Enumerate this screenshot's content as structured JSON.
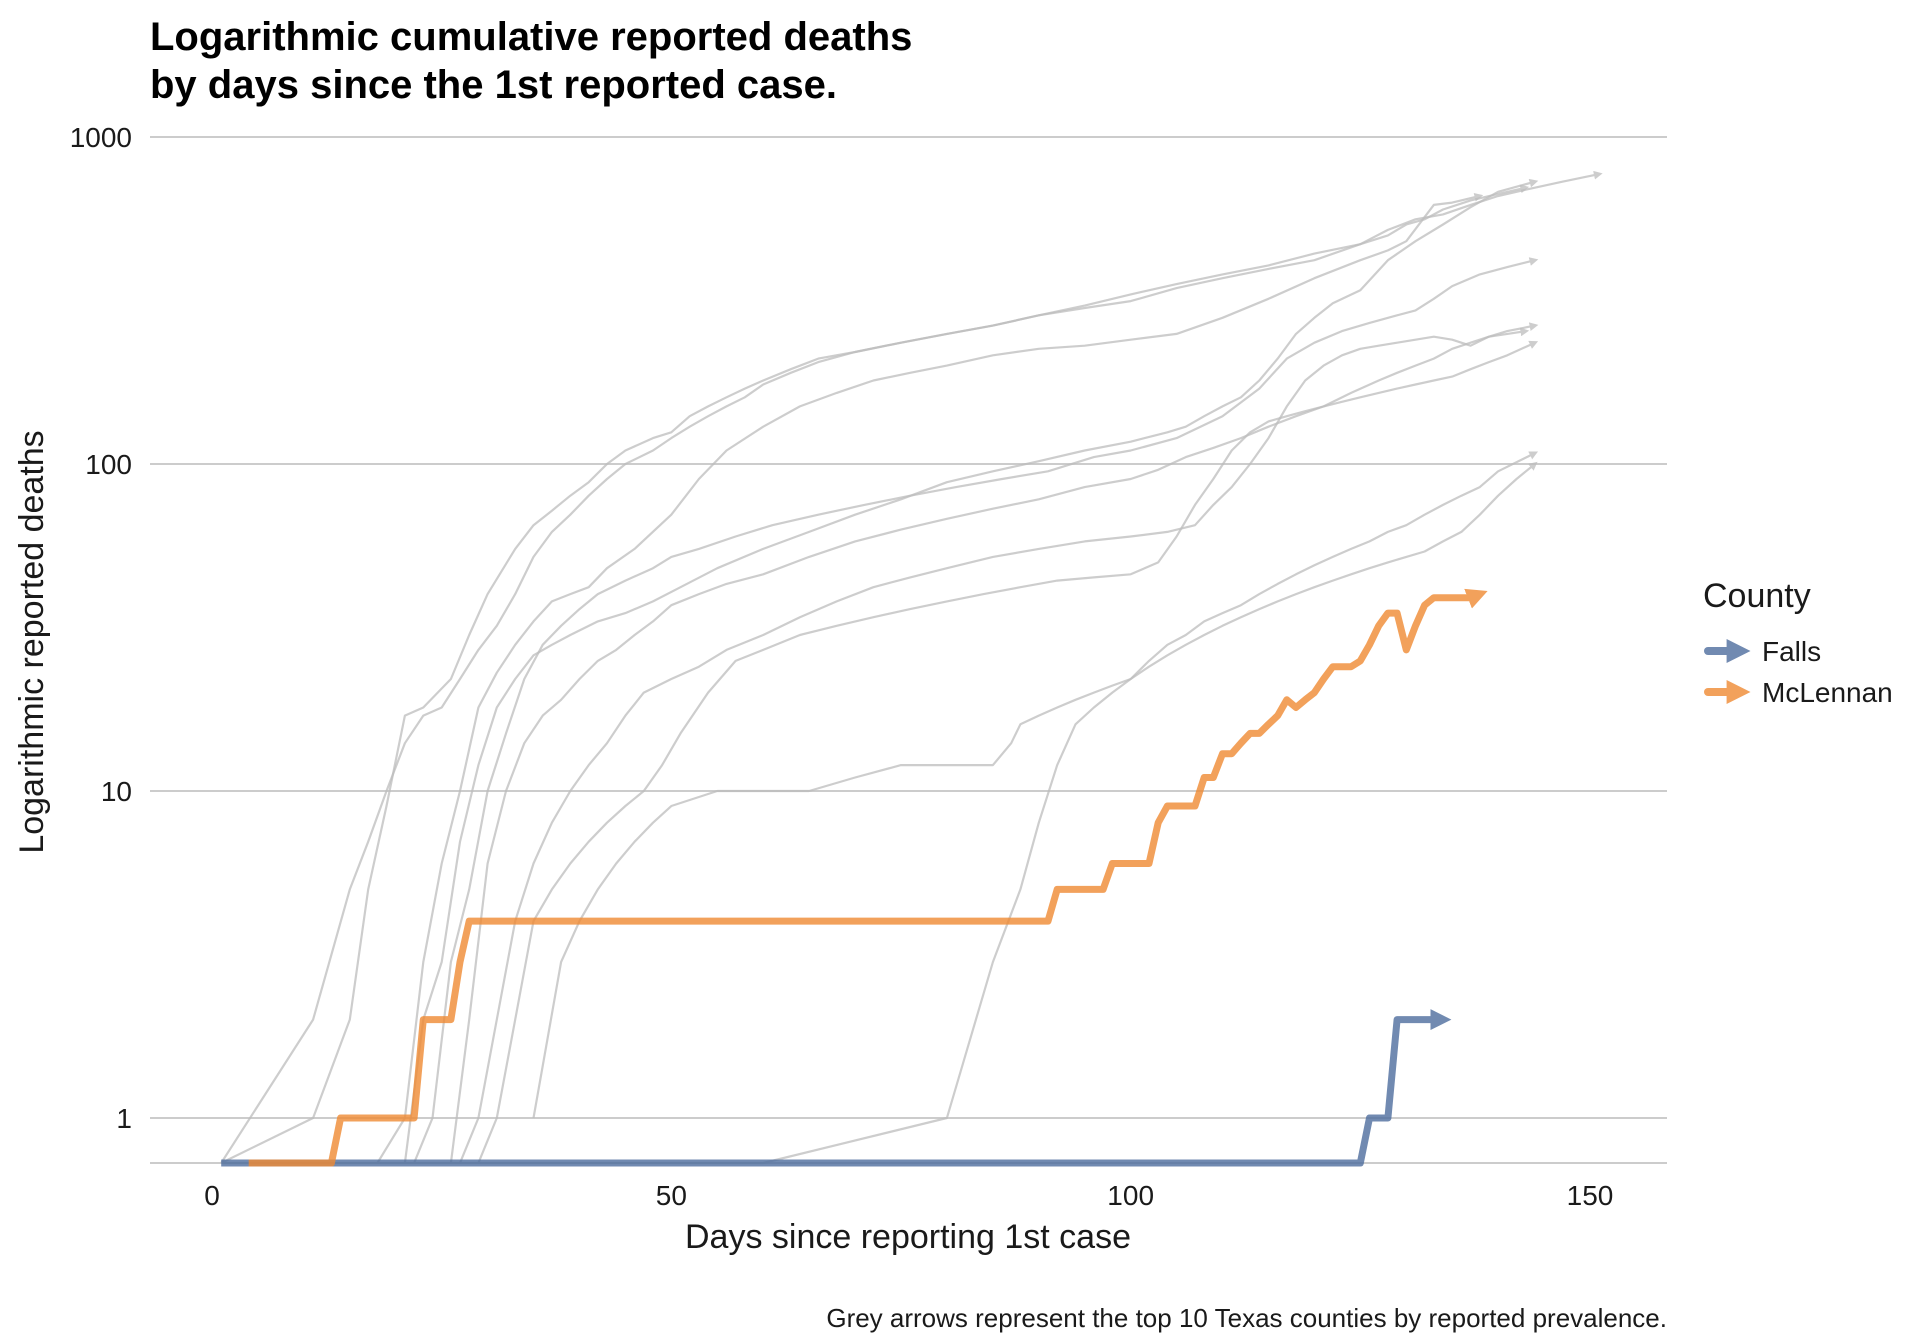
{
  "chart_data": {
    "type": "line",
    "title_lines": [
      "Logarithmic cumulative reported deaths",
      "by days since the 1st reported case."
    ],
    "xlabel": "Days since reporting 1st case",
    "ylabel": "Logarithmic reported deaths",
    "caption": "Grey arrows represent the top 10 Texas counties by reported prevalence.",
    "xlim": [
      -6,
      158
    ],
    "ylim": [
      0.5,
      1000
    ],
    "y_scale": "log10",
    "x_ticks": [
      0,
      50,
      100,
      150
    ],
    "x_tick_labels": [
      "0",
      "50",
      "100",
      "150"
    ],
    "y_ticks": [
      1,
      10,
      100,
      1000
    ],
    "y_tick_labels": [
      "1",
      "10",
      "100",
      "1000"
    ],
    "grid": {
      "horizontal": true,
      "vertical": false,
      "color": "#cccccc"
    },
    "legend": {
      "title": "County",
      "position": "right",
      "entries": [
        {
          "label": "Falls",
          "color": "#4e6e9e"
        },
        {
          "label": "McLennan",
          "color": "#f08a33"
        }
      ]
    },
    "background_series_color": "#bdbdbd",
    "background_series": [
      {
        "x": [
          1,
          11,
          15,
          17,
          19,
          21,
          23,
          26,
          28,
          30,
          33,
          35,
          37,
          39,
          41,
          43,
          45,
          48,
          50,
          52,
          54,
          56,
          58,
          60,
          63,
          66,
          70,
          75,
          80,
          85,
          90,
          95,
          100,
          105,
          110,
          115,
          120,
          125,
          128,
          130,
          132,
          134,
          137,
          140,
          143
        ],
        "y": [
          0.5,
          1,
          2,
          5,
          9,
          17,
          18,
          22,
          30,
          40,
          55,
          65,
          72,
          80,
          88,
          100,
          110,
          120,
          125,
          140,
          150,
          160,
          170,
          180,
          195,
          210,
          220,
          235,
          250,
          265,
          285,
          300,
          315,
          345,
          370,
          395,
          420,
          470,
          500,
          540,
          560,
          600,
          640,
          670,
          700
        ]
      },
      {
        "x": [
          1,
          11,
          15,
          17,
          19,
          21,
          23,
          25,
          27,
          29,
          31,
          33,
          35,
          37,
          39,
          41,
          43,
          45,
          48,
          50,
          52,
          54,
          56,
          58,
          60,
          63,
          66,
          70,
          75,
          80,
          85,
          90,
          95,
          100,
          105,
          110,
          115,
          120,
          125,
          128,
          131,
          134,
          137,
          140,
          143,
          147,
          151
        ],
        "y": [
          0.5,
          2,
          5,
          7,
          10,
          14,
          17,
          18,
          22,
          27,
          32,
          40,
          52,
          62,
          70,
          80,
          90,
          100,
          110,
          120,
          130,
          140,
          150,
          160,
          175,
          190,
          205,
          220,
          235,
          250,
          265,
          285,
          305,
          330,
          355,
          380,
          405,
          440,
          470,
          520,
          560,
          580,
          620,
          660,
          690,
          730,
          770
        ]
      },
      {
        "x": [
          18,
          21,
          23,
          25,
          27,
          29,
          31,
          33,
          35,
          37,
          39,
          41,
          43,
          46,
          50,
          53,
          56,
          60,
          64,
          68,
          72,
          76,
          80,
          85,
          90,
          95,
          100,
          105,
          110,
          115,
          120,
          125,
          128,
          130,
          133,
          135,
          138
        ],
        "y": [
          0.5,
          1,
          3,
          6,
          10,
          18,
          23,
          28,
          33,
          38,
          40,
          42,
          48,
          55,
          70,
          90,
          110,
          130,
          150,
          165,
          180,
          190,
          200,
          215,
          225,
          230,
          240,
          250,
          280,
          320,
          370,
          420,
          450,
          480,
          620,
          630,
          660
        ]
      },
      {
        "x": [
          21,
          23,
          25,
          27,
          29,
          31,
          33,
          35,
          37,
          39,
          42,
          45,
          48,
          51,
          55,
          60,
          65,
          70,
          75,
          80,
          85,
          90,
          95,
          100,
          104,
          106,
          108,
          110,
          112,
          114,
          116,
          118,
          120,
          122,
          125,
          128,
          131,
          134,
          137,
          140,
          144
        ],
        "y": [
          0.5,
          2,
          3,
          7,
          12,
          18,
          22,
          26,
          28,
          30,
          33,
          35,
          38,
          42,
          48,
          55,
          62,
          70,
          78,
          88,
          95,
          102,
          110,
          117,
          125,
          130,
          140,
          150,
          160,
          180,
          210,
          250,
          280,
          310,
          340,
          420,
          480,
          540,
          610,
          680,
          730
        ]
      },
      {
        "x": [
          22,
          24,
          26,
          28,
          30,
          32,
          34,
          36,
          38,
          40,
          42,
          45,
          48,
          50,
          53,
          57,
          61,
          66,
          71,
          76,
          81,
          86,
          91,
          96,
          100,
          105,
          110,
          114,
          117,
          120,
          123,
          126,
          129,
          131,
          133,
          135,
          138,
          141,
          144
        ],
        "y": [
          0.5,
          1,
          3,
          5,
          10,
          15,
          22,
          28,
          32,
          36,
          40,
          44,
          48,
          52,
          55,
          60,
          65,
          70,
          75,
          80,
          85,
          90,
          95,
          105,
          110,
          120,
          140,
          170,
          210,
          235,
          255,
          270,
          285,
          295,
          320,
          350,
          380,
          400,
          420
        ]
      },
      {
        "x": [
          26,
          28,
          30,
          32,
          34,
          36,
          38,
          40,
          42,
          44,
          46,
          48,
          50,
          53,
          56,
          60,
          65,
          70,
          75,
          80,
          85,
          90,
          95,
          100,
          103,
          106,
          109,
          112,
          115,
          118,
          121,
          124,
          127,
          129,
          131,
          133,
          135,
          137,
          139,
          141,
          144
        ],
        "y": [
          0.5,
          2,
          6,
          10,
          14,
          17,
          19,
          22,
          25,
          27,
          30,
          33,
          37,
          40,
          43,
          46,
          52,
          58,
          63,
          68,
          73,
          78,
          85,
          90,
          96,
          105,
          112,
          120,
          130,
          140,
          150,
          165,
          180,
          190,
          200,
          210,
          225,
          235,
          245,
          255,
          265
        ]
      },
      {
        "x": [
          27,
          29,
          31,
          33,
          35,
          37,
          39,
          41,
          43,
          45,
          47,
          50,
          53,
          56,
          60,
          64,
          68,
          72,
          76,
          80,
          85,
          90,
          95,
          100,
          104,
          107,
          109,
          111,
          113,
          115,
          117,
          119,
          121,
          123,
          125,
          127,
          129,
          131,
          133,
          135,
          137,
          139,
          141,
          143
        ],
        "y": [
          0.5,
          1,
          2,
          4,
          6,
          8,
          10,
          12,
          14,
          17,
          20,
          22,
          24,
          27,
          30,
          34,
          38,
          42,
          45,
          48,
          52,
          55,
          58,
          60,
          62,
          65,
          75,
          85,
          100,
          120,
          150,
          180,
          200,
          215,
          225,
          230,
          235,
          240,
          245,
          240,
          230,
          245,
          250,
          255
        ]
      },
      {
        "x": [
          29,
          31,
          33,
          35,
          37,
          39,
          41,
          43,
          45,
          47,
          49,
          51,
          54,
          57,
          60,
          64,
          68,
          72,
          76,
          80,
          84,
          88,
          92,
          96,
          100,
          103,
          105,
          107,
          109,
          111,
          113,
          115,
          117,
          119,
          121,
          123,
          125,
          127,
          129,
          131,
          133,
          135,
          137,
          139,
          141,
          144
        ],
        "y": [
          0.5,
          1,
          2,
          4,
          5,
          6,
          7,
          8,
          9,
          10,
          12,
          15,
          20,
          25,
          27,
          30,
          32,
          34,
          36,
          38,
          40,
          42,
          44,
          45,
          46,
          50,
          60,
          75,
          90,
          110,
          125,
          135,
          140,
          145,
          150,
          155,
          160,
          165,
          170,
          175,
          180,
          185,
          195,
          205,
          215,
          235
        ]
      },
      {
        "x": [
          35,
          38,
          40,
          42,
          44,
          46,
          48,
          50,
          55,
          60,
          65,
          70,
          75,
          80,
          85,
          87,
          88,
          90,
          92,
          94,
          96,
          98,
          100,
          102,
          104,
          106,
          108,
          110,
          112,
          114,
          116,
          118,
          120,
          122,
          124,
          126,
          128,
          130,
          132,
          134,
          136,
          138,
          140,
          144
        ],
        "y": [
          1,
          3,
          4,
          5,
          6,
          7,
          8,
          9,
          10,
          10,
          10,
          11,
          12,
          12,
          12,
          14,
          16,
          17,
          18,
          19,
          20,
          21,
          22,
          25,
          28,
          30,
          33,
          35,
          37,
          40,
          43,
          46,
          49,
          52,
          55,
          58,
          62,
          65,
          70,
          75,
          80,
          85,
          95,
          108
        ]
      },
      {
        "x": [
          1,
          20,
          40,
          60,
          80,
          85,
          88,
          90,
          92,
          94,
          96,
          98,
          100,
          102,
          104,
          106,
          108,
          110,
          112,
          114,
          116,
          118,
          120,
          122,
          124,
          126,
          128,
          130,
          132,
          134,
          136,
          138,
          140,
          142,
          144
        ],
        "y": [
          0.5,
          0.5,
          0.5,
          0.5,
          1,
          3,
          5,
          8,
          12,
          16,
          18,
          20,
          22,
          24,
          26,
          28,
          30,
          32,
          34,
          36,
          38,
          40,
          42,
          44,
          46,
          48,
          50,
          52,
          54,
          58,
          62,
          70,
          80,
          90,
          100
        ]
      }
    ],
    "series": [
      {
        "name": "Falls",
        "color": "#4e6e9e",
        "x": [
          1,
          125,
          126,
          128,
          129,
          131,
          134
        ],
        "y": [
          0.5,
          0.5,
          1,
          1,
          2,
          2,
          2
        ]
      },
      {
        "name": "McLennan",
        "color": "#f08a33",
        "x": [
          4,
          13,
          14,
          22,
          23,
          26,
          27,
          28,
          29,
          91,
          92,
          97,
          98,
          102,
          103,
          104,
          107,
          108,
          109,
          110,
          111,
          112,
          113,
          114,
          115,
          116,
          117,
          118,
          119,
          120,
          121,
          122,
          123,
          124,
          125,
          126,
          127,
          128,
          129,
          130,
          131,
          132,
          133,
          134,
          135,
          136,
          137,
          138
        ],
        "y": [
          0.5,
          0.5,
          1,
          1,
          2,
          2,
          3,
          4,
          4,
          4,
          5,
          5,
          6,
          6,
          8,
          9,
          9,
          11,
          11,
          13,
          13,
          14,
          15,
          15,
          16,
          17,
          19,
          18,
          19,
          20,
          22,
          24,
          24,
          24,
          25,
          28,
          32,
          35,
          35,
          27,
          32,
          37,
          39,
          39,
          39,
          39,
          39,
          40
        ]
      }
    ]
  }
}
